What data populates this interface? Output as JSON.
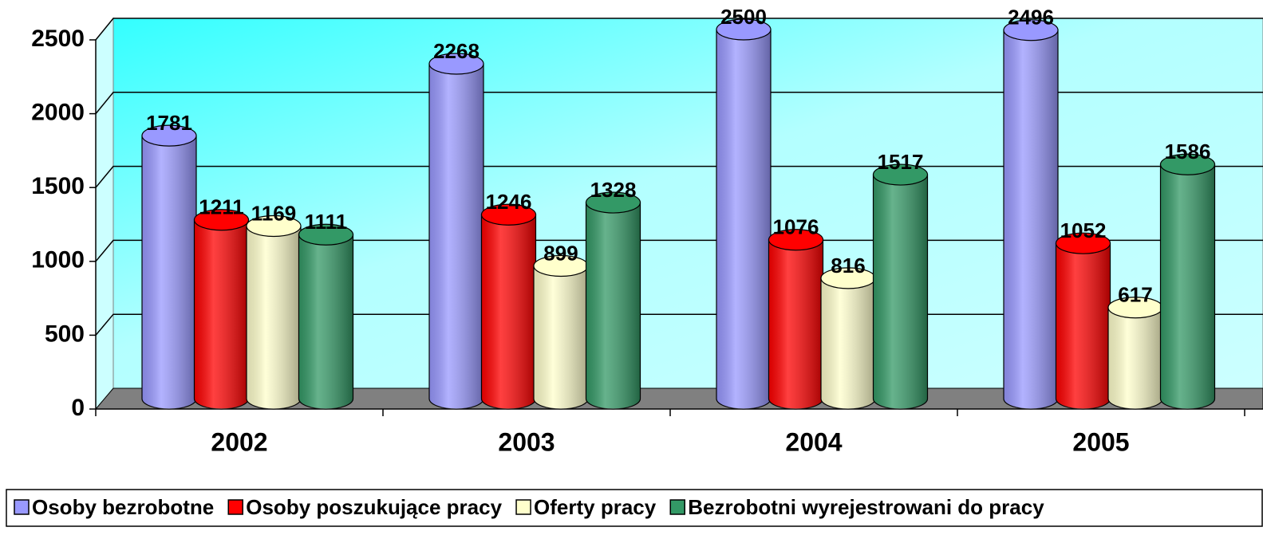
{
  "chart_data": {
    "type": "bar3d",
    "categories": [
      "2002",
      "2003",
      "2004",
      "2005"
    ],
    "series": [
      {
        "name": "Osoby bezrobotne",
        "color": "#9999ff",
        "values": [
          1781,
          2268,
          2500,
          2496
        ]
      },
      {
        "name": "Osoby poszukujące pracy",
        "color": "#ff0000",
        "values": [
          1211,
          1246,
          1076,
          1052
        ]
      },
      {
        "name": "Oferty pracy",
        "color": "#ffffcc",
        "values": [
          1169,
          899,
          816,
          617
        ]
      },
      {
        "name": "Bezrobotni wyrejestrowani do pracy",
        "color": "#339966",
        "values": [
          1111,
          1328,
          1517,
          1586
        ]
      }
    ],
    "ylim": [
      0,
      2500
    ],
    "yticks": [
      0,
      500,
      1000,
      1500,
      2000,
      2500
    ],
    "grid": true,
    "legend": "bottom"
  }
}
